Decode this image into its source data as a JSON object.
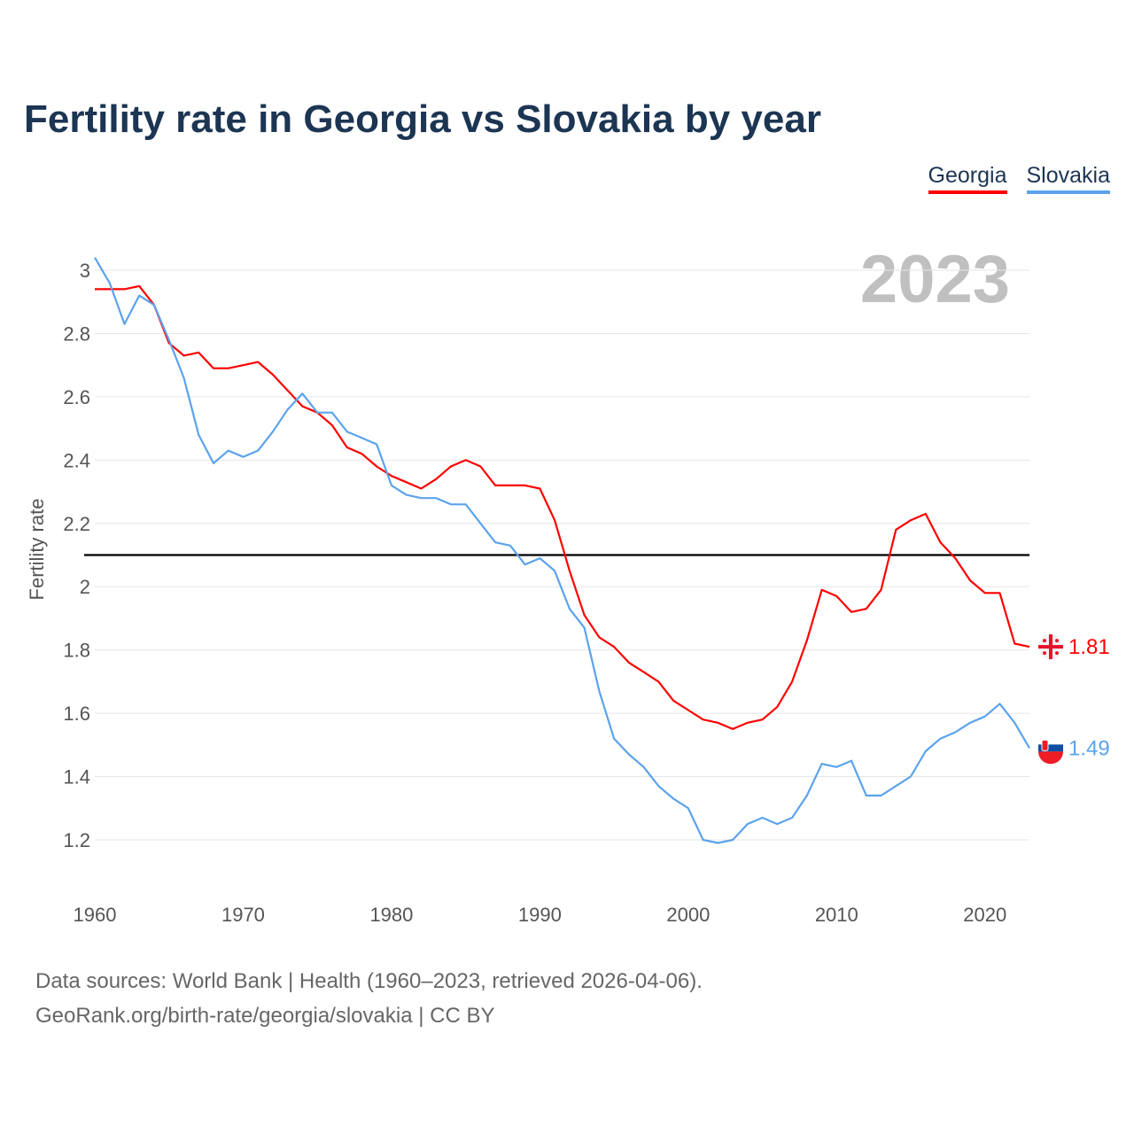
{
  "chart_data": {
    "type": "line",
    "title": "Fertility rate in Georgia vs Slovakia by year",
    "ylabel": "Fertility rate",
    "xlabel": "",
    "current_year_label": "2023",
    "xlim": [
      1960,
      2023
    ],
    "ylim": [
      1.0,
      3.05
    ],
    "x_ticks": [
      "1960",
      "1970",
      "1980",
      "1990",
      "2000",
      "2010",
      "2020"
    ],
    "y_ticks": [
      "1.2",
      "1.4",
      "1.6",
      "1.8",
      "2",
      "2.2",
      "2.4",
      "2.6",
      "2.8",
      "3"
    ],
    "grid": true,
    "legend_position": "top-right",
    "reference_line": 2.1,
    "x_start": 1960,
    "series": [
      {
        "name": "Georgia",
        "color": "#ff0000",
        "end_label": "1.81",
        "values": [
          2.94,
          2.94,
          2.94,
          2.95,
          2.89,
          2.77,
          2.73,
          2.74,
          2.69,
          2.69,
          2.7,
          2.71,
          2.67,
          2.62,
          2.57,
          2.55,
          2.51,
          2.44,
          2.42,
          2.38,
          2.35,
          2.33,
          2.31,
          2.34,
          2.38,
          2.4,
          2.38,
          2.32,
          2.32,
          2.32,
          2.31,
          2.21,
          2.05,
          1.91,
          1.84,
          1.81,
          1.76,
          1.73,
          1.7,
          1.64,
          1.61,
          1.58,
          1.57,
          1.55,
          1.57,
          1.58,
          1.62,
          1.7,
          1.83,
          1.99,
          1.97,
          1.92,
          1.93,
          1.99,
          2.18,
          2.21,
          2.23,
          2.14,
          2.09,
          2.02,
          1.98,
          1.98,
          1.82,
          1.81
        ]
      },
      {
        "name": "Slovakia",
        "color": "#5ba3ec",
        "end_label": "1.49",
        "values": [
          3.04,
          2.96,
          2.83,
          2.92,
          2.89,
          2.78,
          2.66,
          2.48,
          2.39,
          2.43,
          2.41,
          2.43,
          2.49,
          2.56,
          2.61,
          2.55,
          2.55,
          2.49,
          2.47,
          2.45,
          2.32,
          2.29,
          2.28,
          2.28,
          2.26,
          2.26,
          2.2,
          2.14,
          2.13,
          2.07,
          2.09,
          2.05,
          1.93,
          1.87,
          1.67,
          1.52,
          1.47,
          1.43,
          1.37,
          1.33,
          1.3,
          1.2,
          1.19,
          1.2,
          1.25,
          1.27,
          1.25,
          1.27,
          1.34,
          1.44,
          1.43,
          1.45,
          1.34,
          1.34,
          1.37,
          1.4,
          1.48,
          1.52,
          1.54,
          1.57,
          1.59,
          1.63,
          1.57,
          1.49
        ]
      }
    ]
  },
  "source": {
    "line1": "Data sources: World Bank | Health (1960–2023, retrieved 2026-04-06).",
    "line2": "GeoRank.org/birth-rate/georgia/slovakia | CC BY"
  }
}
